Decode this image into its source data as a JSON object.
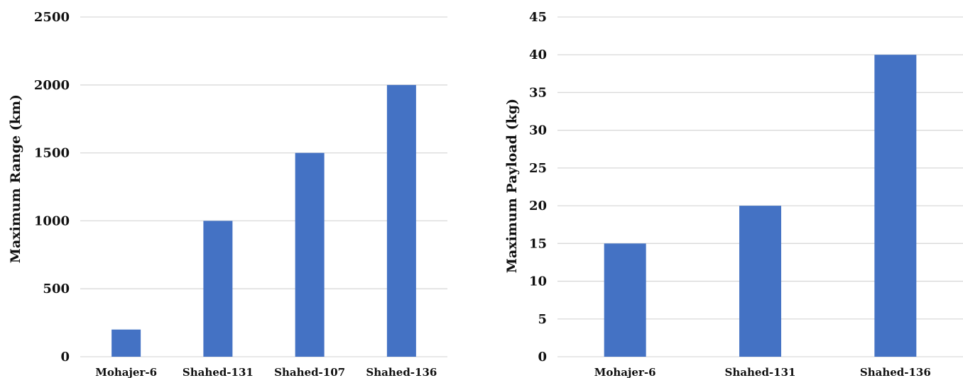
{
  "chart_data": [
    {
      "type": "bar",
      "categories": [
        "Mohajer-6",
        "Shahed-131",
        "Shahed-107",
        "Shahed-136"
      ],
      "values": [
        200,
        1000,
        1500,
        2000
      ],
      "ylabel": "Maximum Range (km)",
      "ylim": [
        0,
        2500
      ],
      "yticks": [
        "0",
        "500",
        "1000",
        "1500",
        "2000",
        "2500"
      ],
      "grid": true,
      "bar_color": "#4472C4"
    },
    {
      "type": "bar",
      "categories": [
        "Mohajer-6",
        "Shahed-131",
        "Shahed-136"
      ],
      "values": [
        15,
        20,
        40
      ],
      "ylabel": "Maximum Payload (kg)",
      "ylim": [
        0,
        45
      ],
      "yticks": [
        "0",
        "5",
        "10",
        "15",
        "20",
        "25",
        "30",
        "35",
        "40",
        "45"
      ],
      "grid": true,
      "bar_color": "#4472C4"
    }
  ]
}
